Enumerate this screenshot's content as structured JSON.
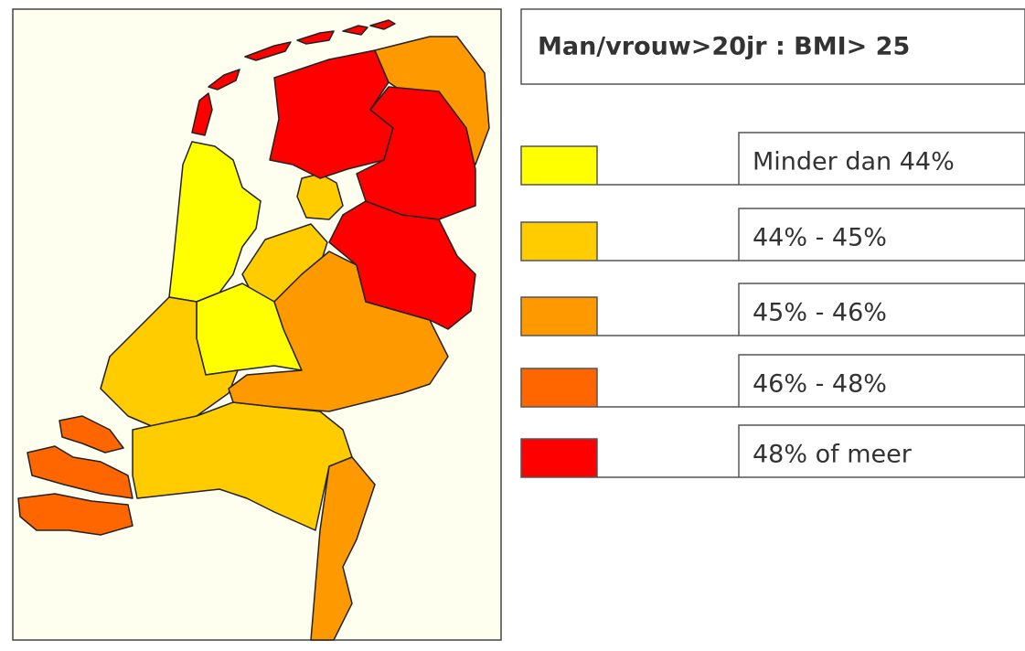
{
  "title": "Man/vrouw>20jr : BMI> 25",
  "legend": [
    {
      "label": "Minder dan 44%",
      "color": "#ffff00"
    },
    {
      "label": "44% - 45%",
      "color": "#ffcc00"
    },
    {
      "label": "45% - 46%",
      "color": "#ff9900"
    },
    {
      "label": "46% - 48%",
      "color": "#ff6600"
    },
    {
      "label": "48% of meer",
      "color": "#ff0000"
    }
  ]
}
